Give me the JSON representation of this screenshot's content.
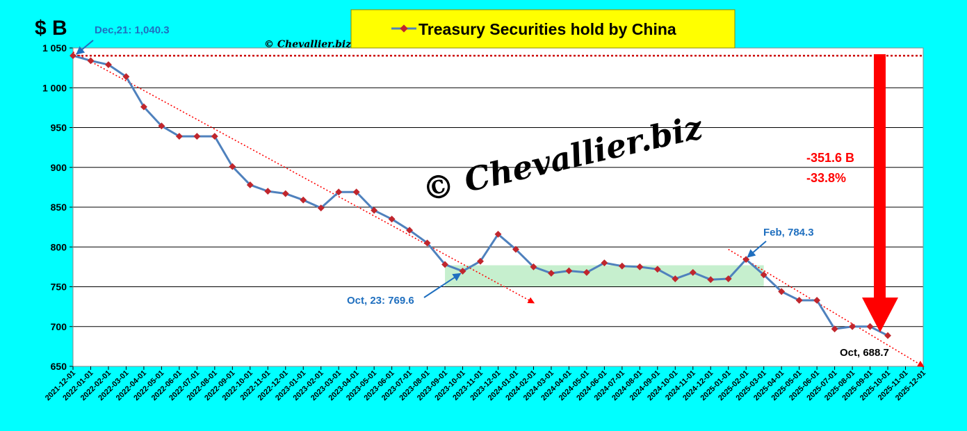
{
  "chart_data": {
    "type": "line",
    "title": "Treasury Securities hold by China",
    "unit_label": "$ B",
    "watermark_small": "© Chevallier.biz",
    "watermark_big": "© Chevallier.biz",
    "ylim": [
      650,
      1050
    ],
    "y_ticks": [
      "650",
      "700",
      "750",
      "800",
      "850",
      "900",
      "950",
      "1 000",
      "1 050"
    ],
    "grid": true,
    "legend": "top-center",
    "line_color": "#4F81BD",
    "marker_color": "#C0262D",
    "x": [
      "2021-12-01",
      "2022-01-01",
      "2022-02-01",
      "2022-03-01",
      "2022-04-01",
      "2022-05-01",
      "2022-06-01",
      "2022-07-01",
      "2022-08-01",
      "2022-09-01",
      "2022-10-01",
      "2022-11-01",
      "2022-12-01",
      "2023-01-01",
      "2023-02-01",
      "2023-03-01",
      "2023-04-01",
      "2023-05-01",
      "2023-06-01",
      "2023-07-01",
      "2023-08-01",
      "2023-09-01",
      "2023-10-01",
      "2023-11-01",
      "2023-12-01",
      "2024-01-01",
      "2024-02-01",
      "2024-03-01",
      "2024-04-01",
      "2024-05-01",
      "2024-06-01",
      "2024-07-01",
      "2024-08-01",
      "2024-09-01",
      "2024-10-01",
      "2024-11-01",
      "2024-12-01",
      "2025-01-01",
      "2025-02-01",
      "2025-03-01",
      "2025-04-01",
      "2025-05-01",
      "2025-06-01",
      "2025-07-01",
      "2025-08-01",
      "2025-09-01",
      "2025-10-01",
      "2025-11-01",
      "2025-12-01"
    ],
    "series": [
      {
        "name": "Treasury Securities hold by China",
        "values": [
          1040.3,
          1034,
          1029,
          1014,
          976,
          952,
          939,
          939,
          939,
          901,
          878,
          870,
          867,
          859,
          849,
          869,
          869,
          846,
          835,
          821,
          805,
          778,
          769.6,
          782,
          816,
          797,
          775,
          767,
          770,
          768,
          780,
          776,
          775,
          772,
          760,
          768,
          759,
          760,
          784.3,
          765,
          744,
          733,
          733,
          697,
          700,
          700,
          688.7,
          null,
          null
        ]
      }
    ],
    "annotations": {
      "dec21": "Dec,21: 1,040.3",
      "oct23": "Oct, 23: 769.6",
      "feb": "Feb, 784.3",
      "oct25": "Oct, 688.7",
      "drop_abs": "-351.6 B",
      "drop_pct": "-33.8%"
    },
    "reference_line": {
      "value": 1040.3,
      "color": "#CC0000",
      "style": "dotted"
    },
    "trend_lines": [
      {
        "from": [
          "2021-12-01",
          1045
        ],
        "to": [
          "2024-02-01",
          730
        ],
        "color": "#FF0000"
      },
      {
        "from": [
          "2025-01-01",
          797
        ],
        "to": [
          "2025-12-01",
          650
        ],
        "color": "#FF0000"
      }
    ],
    "range_band": {
      "from": "2023-09-01",
      "to": "2025-03-01",
      "low": 750,
      "high": 777,
      "color": "#C6EFCE"
    }
  }
}
